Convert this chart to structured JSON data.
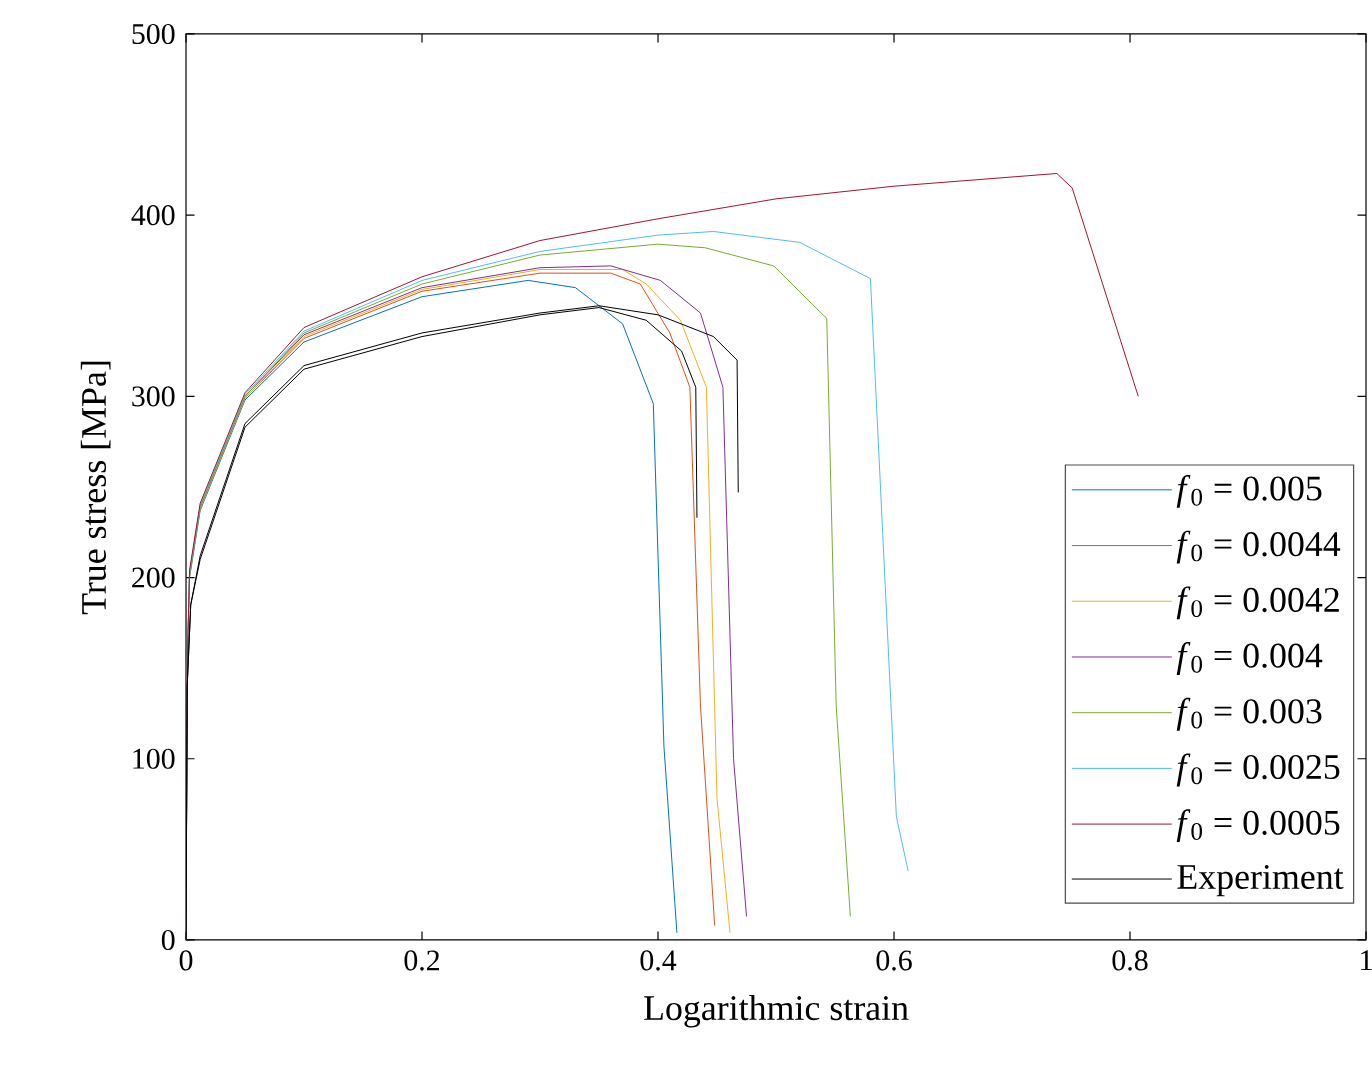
{
  "chart_data": {
    "type": "line",
    "xlabel": "Logarithmic strain",
    "ylabel": "True stress [MPa]",
    "xlim": [
      0,
      1
    ],
    "ylim": [
      0,
      500
    ],
    "xticks": [
      0,
      0.2,
      0.4,
      0.6,
      0.8,
      1
    ],
    "yticks": [
      0,
      100,
      200,
      300,
      400,
      500
    ],
    "legend": "bottom right",
    "series": [
      {
        "name": "*f*$_{0}$ = 0.005",
        "color": "#0072bd",
        "x": [
          0.003,
          0.012,
          0.05,
          0.1,
          0.2,
          0.29,
          0.33,
          0.37,
          0.396,
          0.405,
          0.416
        ],
        "values": [
          200,
          237,
          298,
          330,
          355,
          364,
          360,
          340,
          296,
          107,
          4
        ]
      },
      {
        "name": "*f*$_{0}$ = 0.0044",
        "color": "#d95319",
        "x": [
          0.003,
          0.012,
          0.05,
          0.1,
          0.2,
          0.3,
          0.36,
          0.385,
          0.41,
          0.427,
          0.436,
          0.448
        ],
        "values": [
          201,
          238,
          299,
          332,
          358,
          368,
          368,
          362,
          335,
          305,
          129,
          8
        ]
      },
      {
        "name": "*f*$_{0}$ = 0.0042",
        "color": "#edb120",
        "x": [
          0.003,
          0.012,
          0.05,
          0.1,
          0.2,
          0.3,
          0.37,
          0.39,
          0.419,
          0.441,
          0.45,
          0.461
        ],
        "values": [
          201,
          238,
          299,
          333,
          359,
          370,
          370,
          362,
          342,
          305,
          78,
          4
        ]
      },
      {
        "name": "*f*$_{0}$ = 0.004",
        "color": "#7e2f8e",
        "x": [
          0,
          0.001,
          0.003,
          0.012,
          0.05,
          0.1,
          0.2,
          0.3,
          0.36,
          0.402,
          0.436,
          0.455,
          0.464,
          0.475
        ],
        "values": [
          0,
          150,
          202,
          239,
          300,
          334,
          360,
          371,
          372,
          364,
          346,
          305,
          100,
          13
        ]
      },
      {
        "name": "*f*$_{0}$ = 0.003",
        "color": "#77ac30",
        "x": [
          0,
          0.001,
          0.003,
          0.012,
          0.05,
          0.1,
          0.2,
          0.3,
          0.4,
          0.44,
          0.498,
          0.543,
          0.551,
          0.563
        ],
        "values": [
          0,
          150,
          202,
          239,
          300,
          335,
          362,
          378,
          384,
          382,
          372,
          343,
          129,
          13
        ]
      },
      {
        "name": "*f*$_{0}$ = 0.0025",
        "color": "#4dbeee",
        "x": [
          0,
          0.001,
          0.003,
          0.012,
          0.05,
          0.1,
          0.2,
          0.3,
          0.4,
          0.447,
          0.52,
          0.58,
          0.602,
          0.612
        ],
        "values": [
          0,
          150,
          203,
          240,
          301,
          336,
          364,
          380,
          389,
          391,
          385,
          365,
          68,
          38
        ]
      },
      {
        "name": "*f*$_{0}$ = 0.0005",
        "color": "#a2142f",
        "x": [
          0,
          0.001,
          0.003,
          0.012,
          0.05,
          0.1,
          0.2,
          0.3,
          0.4,
          0.5,
          0.6,
          0.738,
          0.751,
          0.807
        ],
        "values": [
          0,
          150,
          204,
          241,
          302,
          338,
          366,
          386,
          398,
          409,
          416,
          423,
          415,
          300
        ]
      },
      {
        "name": "Experiment",
        "color": "#000000",
        "x": [
          0,
          0.001,
          0.004,
          0.012,
          0.05,
          0.1,
          0.2,
          0.3,
          0.35,
          0.39,
          0.42,
          0.432,
          0.433
        ],
        "values": [
          0,
          140,
          185,
          210,
          283,
          315,
          333,
          345,
          349,
          342,
          325,
          305,
          233
        ]
      },
      {
        "color": "#000000",
        "x": [
          0,
          0.001,
          0.004,
          0.012,
          0.05,
          0.1,
          0.2,
          0.3,
          0.35,
          0.4,
          0.447,
          0.467,
          0.468
        ],
        "values": [
          0,
          140,
          185,
          212,
          285,
          317,
          335,
          346,
          350,
          345,
          333,
          320,
          247
        ]
      }
    ]
  }
}
